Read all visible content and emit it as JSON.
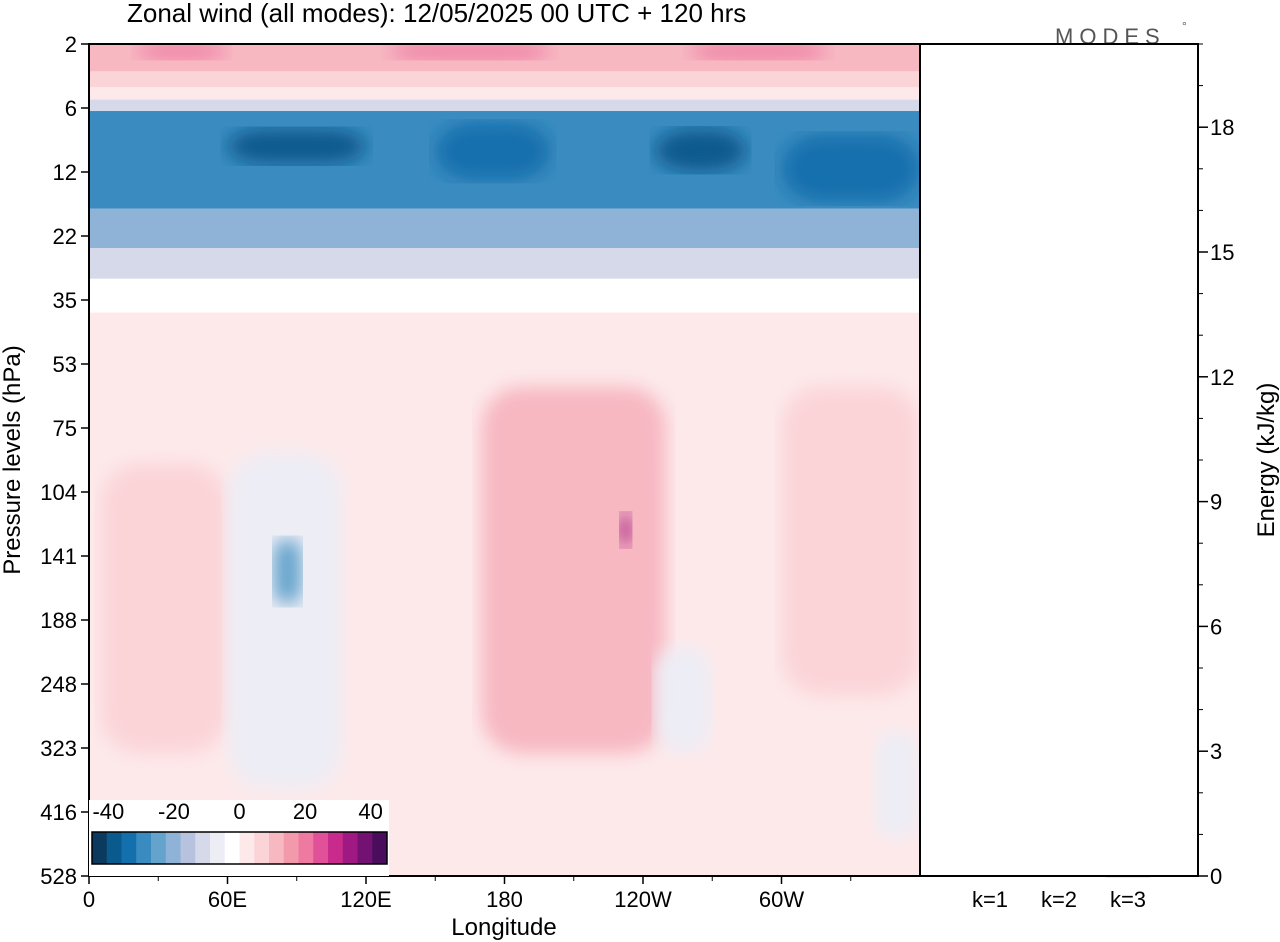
{
  "chart_data": [
    {
      "type": "heatmap",
      "title": "Zonal wind (all modes):  12/05/2025  00 UTC  + 120 hrs",
      "logo_text": "MODES",
      "logo_mark": "°",
      "xlabel": "Longitude",
      "ylabel": "Pressure levels (hPa)",
      "x_ticks": [
        "0",
        "60E",
        "120E",
        "180",
        "120W",
        "60W"
      ],
      "x_tick_values": [
        0,
        60,
        120,
        180,
        240,
        300
      ],
      "xlim": [
        0,
        360
      ],
      "y_ticks": [
        "2",
        "6",
        "12",
        "22",
        "35",
        "53",
        "75",
        "104",
        "141",
        "188",
        "248",
        "323",
        "416",
        "528"
      ],
      "y_scale": "sigma/pressure levels (nonlinear, top = 2 hPa, bottom = 528 hPa)",
      "colorbar": {
        "ticks": [
          "-40",
          "-20",
          "0",
          "20",
          "40"
        ],
        "tick_values": [
          -40,
          -20,
          0,
          20,
          40
        ],
        "range": [
          -45,
          45
        ],
        "colors": [
          "#0c3a5e",
          "#0b5a8e",
          "#1470ad",
          "#3a8cc0",
          "#63a3cc",
          "#8fb3d6",
          "#b6c2de",
          "#d6d9ea",
          "#ededf5",
          "#ffffff",
          "#fde9ea",
          "#fbd4d8",
          "#f7b8c2",
          "#f399ac",
          "#ee7aa2",
          "#e0519a",
          "#c92b8c",
          "#a01881",
          "#741273",
          "#4a0c5c"
        ]
      },
      "features": [
        {
          "name": "easterly jet",
          "lon": [
            0,
            360
          ],
          "level_hPa": [
            6,
            22
          ],
          "value": -30
        },
        {
          "name": "westerly band upper",
          "lon": [
            0,
            360
          ],
          "level_hPa": [
            2,
            4
          ],
          "value": 12
        },
        {
          "name": "negative core",
          "lon": [
            72,
            95
          ],
          "level_hPa": [
            110,
            200
          ],
          "value": -18
        },
        {
          "name": "positive core",
          "lon": [
            195,
            240
          ],
          "level_hPa": [
            90,
            200
          ],
          "value": 24
        },
        {
          "name": "positive core",
          "lon": [
            315,
            345
          ],
          "level_hPa": [
            110,
            180
          ],
          "value": 22
        },
        {
          "name": "positive core",
          "lon": [
            15,
            45
          ],
          "level_hPa": [
            110,
            260
          ],
          "value": 12
        }
      ]
    },
    {
      "type": "bar",
      "categories": [
        "k=1",
        "k=2",
        "k=3"
      ],
      "values": [
        0.02,
        0.02,
        0.01
      ],
      "ylabel": "Energy (kJ/kg)",
      "y_ticks": [
        "0",
        "3",
        "6",
        "9",
        "12",
        "15",
        "18"
      ],
      "ylim": [
        0,
        20
      ]
    }
  ]
}
